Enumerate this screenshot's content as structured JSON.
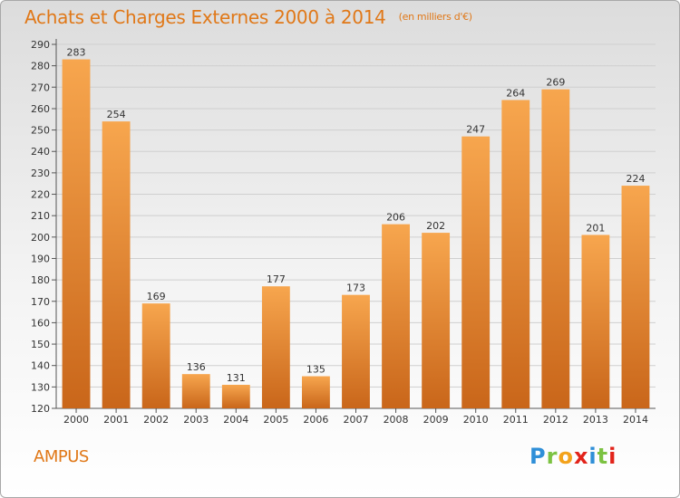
{
  "header": {
    "title": "Achats et Charges Externes 2000 à 2014",
    "subtitle": "(en milliers d'€)"
  },
  "footer": {
    "commune": "AMPUS",
    "logo": "Proxiti"
  },
  "colors": {
    "bar_light": "#f7a64e",
    "bar_dark": "#c9661a",
    "title": "#e07818",
    "grid": "#c8c8c8"
  },
  "chart_data": {
    "type": "bar",
    "title": "Achats et Charges Externes 2000 à 2014",
    "subtitle": "(en milliers d'€)",
    "xlabel": "",
    "ylabel": "",
    "ylim": [
      120,
      290
    ],
    "ytick_step": 10,
    "grid": true,
    "categories": [
      "2000",
      "2001",
      "2002",
      "2003",
      "2004",
      "2005",
      "2006",
      "2007",
      "2008",
      "2009",
      "2010",
      "2011",
      "2012",
      "2013",
      "2014"
    ],
    "values": [
      283,
      254,
      169,
      136,
      131,
      177,
      135,
      173,
      206,
      202,
      247,
      264,
      269,
      201,
      224
    ]
  }
}
